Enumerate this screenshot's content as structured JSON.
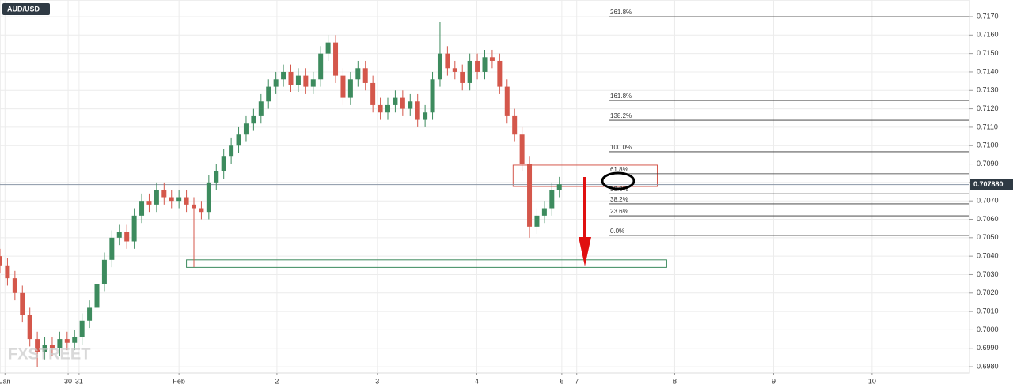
{
  "chart_data": {
    "type": "candlestick",
    "symbol": "AUD/USD",
    "watermark": "FXSTREET",
    "up_color": "#3d8b5e",
    "down_color": "#d4574b",
    "grid": true,
    "xlim": [
      0,
      195
    ],
    "ylim": [
      0.69766,
      0.7179
    ],
    "xticks": [
      {
        "value": 1,
        "label": "Jan"
      },
      {
        "value": 13.7,
        "label": "30"
      },
      {
        "value": 15.9,
        "label": "31"
      },
      {
        "value": 36,
        "label": "Feb"
      },
      {
        "value": 55.7,
        "label": "2"
      },
      {
        "value": 75.9,
        "label": "3"
      },
      {
        "value": 95.9,
        "label": "4"
      },
      {
        "value": 113,
        "label": "6"
      },
      {
        "value": 116,
        "label": "7"
      },
      {
        "value": 135.7,
        "label": "8"
      },
      {
        "value": 155.6,
        "label": "9"
      },
      {
        "value": 175.4,
        "label": "10"
      }
    ],
    "yticks": [
      {
        "value": 0.698,
        "label": "0.6980"
      },
      {
        "value": 0.699,
        "label": "0.6990"
      },
      {
        "value": 0.7,
        "label": "0.7000"
      },
      {
        "value": 0.701,
        "label": "0.7010"
      },
      {
        "value": 0.702,
        "label": "0.7020"
      },
      {
        "value": 0.703,
        "label": "0.7030"
      },
      {
        "value": 0.704,
        "label": "0.7040"
      },
      {
        "value": 0.705,
        "label": "0.7050"
      },
      {
        "value": 0.706,
        "label": "0.7060"
      },
      {
        "value": 0.707,
        "label": "0.7070"
      },
      {
        "value": 0.708,
        "label": "0.7080"
      },
      {
        "value": 0.709,
        "label": "0.7090"
      },
      {
        "value": 0.71,
        "label": "0.7100"
      },
      {
        "value": 0.711,
        "label": "0.7110"
      },
      {
        "value": 0.712,
        "label": "0.7120"
      },
      {
        "value": 0.713,
        "label": "0.7130"
      },
      {
        "value": 0.714,
        "label": "0.7140"
      },
      {
        "value": 0.715,
        "label": "0.7150"
      },
      {
        "value": 0.716,
        "label": "0.7160"
      },
      {
        "value": 0.717,
        "label": "0.7170"
      }
    ],
    "x": [
      0,
      1.5,
      3,
      4.5,
      6,
      7.5,
      9,
      10.5,
      12,
      13.5,
      15,
      16.5,
      18,
      19.5,
      21,
      22.5,
      24,
      25.5,
      27,
      28.5,
      30,
      31.5,
      33,
      34.5,
      36,
      37.5,
      39,
      40.5,
      42,
      43.5,
      45,
      46.5,
      48,
      49.5,
      51,
      52.5,
      54,
      55.5,
      57,
      58.5,
      60,
      61.5,
      63,
      64.5,
      66,
      67.5,
      69,
      70.5,
      72,
      73.5,
      75,
      76.5,
      78,
      79.5,
      81,
      82.5,
      84,
      85.5,
      87,
      88.5,
      90,
      91.5,
      93,
      94.5,
      96,
      97.5,
      99,
      100.5,
      102,
      103.5,
      105,
      106.5,
      108,
      109.5,
      111,
      112.5
    ],
    "open": [
      0.704,
      0.7035,
      0.7028,
      0.702,
      0.7008,
      0.6995,
      0.6988,
      0.6992,
      0.699,
      0.6995,
      0.6993,
      0.6996,
      0.7005,
      0.7012,
      0.7025,
      0.7038,
      0.705,
      0.7053,
      0.7048,
      0.7062,
      0.707,
      0.7068,
      0.7076,
      0.7072,
      0.707,
      0.7072,
      0.7068,
      0.7066,
      0.7064,
      0.708,
      0.7086,
      0.7094,
      0.71,
      0.7106,
      0.7112,
      0.7116,
      0.7124,
      0.7132,
      0.7136,
      0.714,
      0.7133,
      0.7138,
      0.7132,
      0.7136,
      0.715,
      0.7156,
      0.7138,
      0.7126,
      0.7136,
      0.7142,
      0.7134,
      0.7122,
      0.7118,
      0.7122,
      0.7126,
      0.712,
      0.7124,
      0.7114,
      0.7118,
      0.7136,
      0.715,
      0.7142,
      0.714,
      0.7134,
      0.7146,
      0.714,
      0.7148,
      0.7146,
      0.7132,
      0.7116,
      0.7106,
      0.709,
      0.7056,
      0.7062,
      0.7066,
      0.7076
    ],
    "high": [
      0.7044,
      0.7039,
      0.7032,
      0.7024,
      0.7012,
      0.6999,
      0.6996,
      0.6996,
      0.6999,
      0.6999,
      0.7,
      0.7009,
      0.7016,
      0.7029,
      0.7042,
      0.7054,
      0.7057,
      0.7057,
      0.7066,
      0.7074,
      0.7074,
      0.708,
      0.708,
      0.7076,
      0.7076,
      0.7076,
      0.7072,
      0.707,
      0.7084,
      0.709,
      0.7098,
      0.7104,
      0.711,
      0.7116,
      0.712,
      0.7128,
      0.7136,
      0.714,
      0.7144,
      0.7144,
      0.7142,
      0.7142,
      0.714,
      0.7154,
      0.716,
      0.716,
      0.7142,
      0.714,
      0.7146,
      0.7146,
      0.7138,
      0.7126,
      0.7126,
      0.713,
      0.713,
      0.7128,
      0.7128,
      0.7122,
      0.714,
      0.7167,
      0.7154,
      0.7146,
      0.7144,
      0.715,
      0.715,
      0.7152,
      0.7152,
      0.715,
      0.7136,
      0.712,
      0.711,
      0.7094,
      0.7066,
      0.707,
      0.708,
      0.7083
    ],
    "low": [
      0.7031,
      0.7024,
      0.7016,
      0.7004,
      0.6991,
      0.698,
      0.6984,
      0.6986,
      0.6986,
      0.6989,
      0.6989,
      0.6992,
      0.7001,
      0.7008,
      0.7021,
      0.7034,
      0.7046,
      0.7044,
      0.7044,
      0.7058,
      0.7064,
      0.7064,
      0.7068,
      0.7066,
      0.7066,
      0.7064,
      0.7034,
      0.706,
      0.706,
      0.7076,
      0.7082,
      0.709,
      0.7096,
      0.7102,
      0.7108,
      0.7112,
      0.712,
      0.7128,
      0.7132,
      0.7129,
      0.7129,
      0.7128,
      0.7128,
      0.7132,
      0.7146,
      0.7134,
      0.7122,
      0.7122,
      0.7132,
      0.713,
      0.7118,
      0.7114,
      0.7114,
      0.7118,
      0.7116,
      0.7116,
      0.711,
      0.711,
      0.7114,
      0.7132,
      0.7138,
      0.7136,
      0.713,
      0.713,
      0.7136,
      0.7136,
      0.7142,
      0.7128,
      0.7112,
      0.7102,
      0.7086,
      0.705,
      0.7052,
      0.7058,
      0.7062,
      0.7072
    ],
    "close": [
      0.7035,
      0.7028,
      0.702,
      0.7008,
      0.6995,
      0.6988,
      0.6992,
      0.699,
      0.6995,
      0.6993,
      0.6996,
      0.7005,
      0.7012,
      0.7025,
      0.7038,
      0.705,
      0.7053,
      0.7048,
      0.7062,
      0.707,
      0.7068,
      0.7076,
      0.7072,
      0.707,
      0.7072,
      0.7068,
      0.7066,
      0.7064,
      0.708,
      0.7086,
      0.7094,
      0.71,
      0.7106,
      0.7112,
      0.7116,
      0.7124,
      0.7132,
      0.7136,
      0.714,
      0.7133,
      0.7138,
      0.7132,
      0.7136,
      0.715,
      0.7156,
      0.7138,
      0.7126,
      0.7136,
      0.7142,
      0.7134,
      0.7122,
      0.7118,
      0.7122,
      0.7126,
      0.712,
      0.7124,
      0.7114,
      0.7118,
      0.7136,
      0.715,
      0.7142,
      0.714,
      0.7134,
      0.7146,
      0.714,
      0.7148,
      0.7146,
      0.7132,
      0.7116,
      0.7106,
      0.709,
      0.7056,
      0.7062,
      0.7066,
      0.7076,
      0.7079
    ],
    "fib_levels": [
      {
        "label": "261.8%",
        "value": 0.717
      },
      {
        "label": "161.8%",
        "value": 0.71245
      },
      {
        "label": "138.2%",
        "value": 0.71138
      },
      {
        "label": "100.0%",
        "value": 0.70967
      },
      {
        "label": "61.8%",
        "value": 0.70847
      },
      {
        "label": "50.0%",
        "value": 0.70739
      },
      {
        "label": "38.2%",
        "value": 0.70684
      },
      {
        "label": "23.6%",
        "value": 0.70619
      },
      {
        "label": "0.0%",
        "value": 0.70512
      }
    ],
    "last_price": {
      "value": 0.70788,
      "label": "0.707880"
    },
    "zones": [
      {
        "x": [
          103.2,
          132.2
        ],
        "y": [
          0.70778,
          0.70894
        ],
        "color": "#d4574b"
      },
      {
        "x": [
          37.5,
          134.1
        ],
        "y": [
          0.70339,
          0.7038
        ],
        "color": "#3d8b5e"
      }
    ]
  }
}
